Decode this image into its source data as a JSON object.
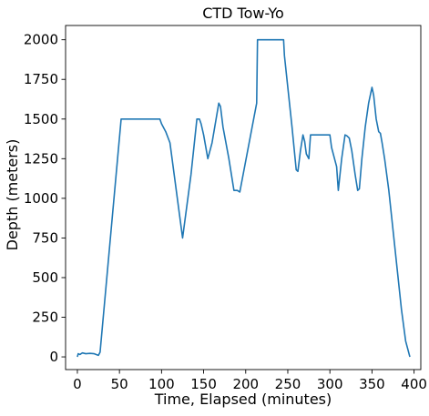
{
  "chart_data": {
    "type": "line",
    "title": "CTD Tow-Yo",
    "xlabel": "Time, Elapsed (minutes)",
    "ylabel": "Depth (meters)",
    "xlim": [
      -14,
      408
    ],
    "ylim": [
      -80,
      2090
    ],
    "xticks": [
      0,
      50,
      100,
      150,
      200,
      250,
      300,
      350,
      400
    ],
    "yticks": [
      0,
      250,
      500,
      750,
      1000,
      1250,
      1500,
      1750,
      2000
    ],
    "grid": false,
    "line_color": "#1f77b4",
    "series": [
      {
        "x": [
          0,
          1,
          3,
          6,
          10,
          15,
          20,
          25,
          27,
          52,
          98,
          100,
          105,
          110,
          115,
          125,
          135,
          142,
          145,
          147,
          150,
          155,
          160,
          168,
          170,
          173,
          180,
          186,
          190,
          193,
          213,
          214,
          245,
          246,
          255,
          260,
          262,
          265,
          268,
          270,
          272,
          275,
          277,
          280,
          284,
          300,
          302,
          308,
          310,
          314,
          318,
          320,
          323,
          326,
          330,
          333,
          335,
          338,
          342,
          346,
          350,
          352,
          355,
          358,
          360,
          362,
          365,
          370,
          375,
          380,
          385,
          390,
          395
        ],
        "y": [
          0,
          20,
          15,
          25,
          20,
          22,
          20,
          10,
          30,
          1500,
          1500,
          1470,
          1420,
          1350,
          1150,
          750,
          1150,
          1500,
          1500,
          1470,
          1400,
          1250,
          1350,
          1600,
          1580,
          1450,
          1250,
          1050,
          1050,
          1040,
          1600,
          2000,
          2000,
          1900,
          1450,
          1180,
          1170,
          1300,
          1400,
          1360,
          1280,
          1250,
          1400,
          1400,
          1400,
          1400,
          1320,
          1200,
          1050,
          1250,
          1400,
          1395,
          1380,
          1300,
          1150,
          1050,
          1060,
          1250,
          1450,
          1600,
          1700,
          1650,
          1500,
          1420,
          1410,
          1350,
          1250,
          1050,
          800,
          550,
          300,
          100,
          0
        ]
      }
    ]
  }
}
